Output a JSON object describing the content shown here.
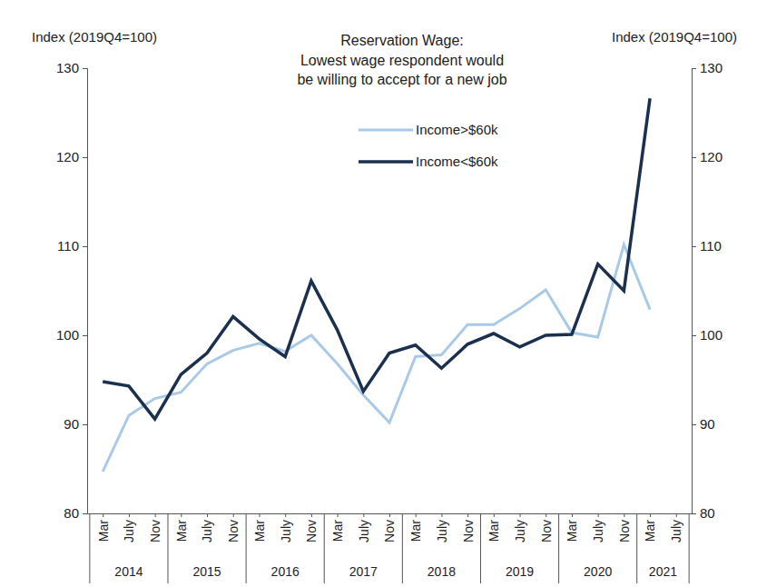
{
  "chart_data": {
    "type": "line",
    "title": "Reservation Wage:",
    "subtitle": [
      "Lowest wage respondent would",
      "be willing to accept for a new job"
    ],
    "y_label": "Index (2019Q4=100)",
    "y2_label": "Index (2019Q4=100)",
    "categories": [
      "Mar",
      "July",
      "Nov",
      "Mar",
      "July",
      "Nov",
      "Mar",
      "July",
      "Nov",
      "Mar",
      "July",
      "Nov",
      "Mar",
      "July",
      "Nov",
      "Mar",
      "July",
      "Nov",
      "Mar",
      "July",
      "Nov",
      "Mar",
      "July"
    ],
    "years": [
      "2014",
      "2014",
      "2014",
      "2015",
      "2015",
      "2015",
      "2016",
      "2016",
      "2016",
      "2017",
      "2017",
      "2017",
      "2018",
      "2018",
      "2018",
      "2019",
      "2019",
      "2019",
      "2020",
      "2020",
      "2020",
      "2021",
      "2021"
    ],
    "series": [
      {
        "name": "Income>$60k",
        "color": "#a9c9e8",
        "values": [
          84.7,
          91.0,
          92.9,
          93.6,
          96.8,
          98.3,
          99.1,
          98.2,
          100.0,
          96.8,
          93.3,
          90.2,
          97.6,
          97.8,
          101.2,
          101.2,
          103.0,
          105.1,
          100.3,
          99.8,
          110.2,
          102.9,
          null
        ]
      },
      {
        "name": "Income<$60k",
        "color": "#1b2f4e",
        "values": [
          94.8,
          94.3,
          90.6,
          95.6,
          98.0,
          102.1,
          99.6,
          97.6,
          106.1,
          100.6,
          93.7,
          98.0,
          98.9,
          96.3,
          99.0,
          100.2,
          98.7,
          100.0,
          100.1,
          108.0,
          105.0,
          126.6,
          null
        ]
      }
    ],
    "ylim": [
      80,
      130
    ],
    "yticks": [
      80,
      90,
      100,
      110,
      120,
      130
    ],
    "y2lim": [
      80,
      130
    ],
    "y2ticks": [
      80,
      90,
      100,
      110,
      120,
      130
    ],
    "grid": false,
    "legend": "top"
  }
}
